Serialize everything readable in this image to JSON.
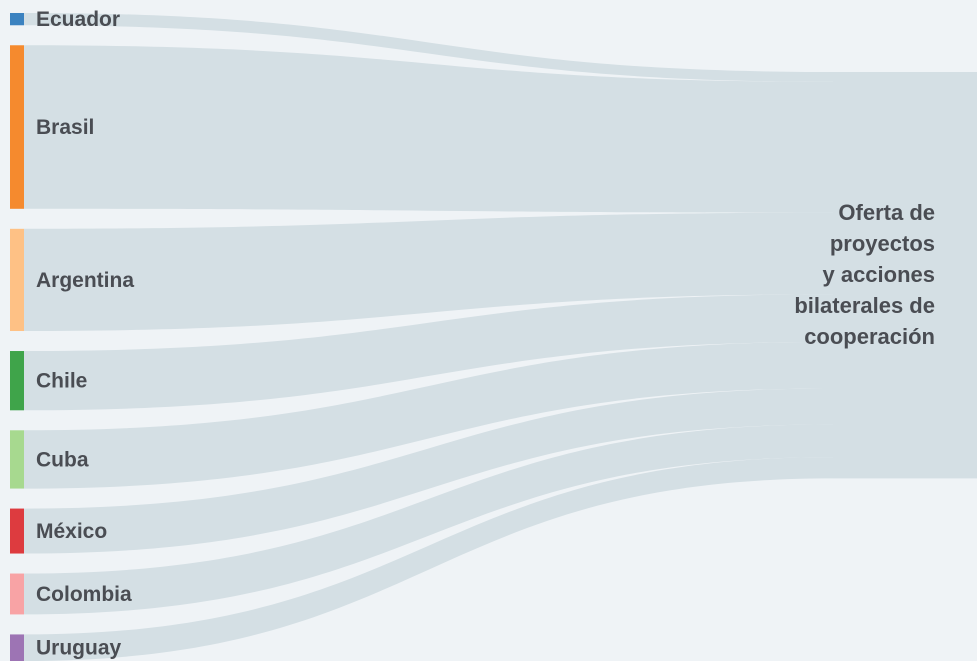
{
  "chart_data": {
    "type": "sankey",
    "target": "Oferta de\nproyectos\ny acciones\nbilaterales de\ncooperación",
    "nodes": [
      {
        "name": "Ecuador",
        "value": 1.2,
        "color": "#3b82c0"
      },
      {
        "name": "Brasil",
        "value": 16.0,
        "color": "#f58a2e"
      },
      {
        "name": "Argentina",
        "value": 10.0,
        "color": "#fec185"
      },
      {
        "name": "Chile",
        "value": 5.8,
        "color": "#3fa44a"
      },
      {
        "name": "Cuba",
        "value": 5.7,
        "color": "#a7d98f"
      },
      {
        "name": "México",
        "value": 4.4,
        "color": "#dd3b3f"
      },
      {
        "name": "Colombia",
        "value": 4.0,
        "color": "#f8a3a5"
      },
      {
        "name": "Uruguay",
        "value": 2.6,
        "color": "#9d74b4"
      }
    ],
    "flow_color": "#d4dfe4",
    "target_color": "#d4dfe4"
  }
}
